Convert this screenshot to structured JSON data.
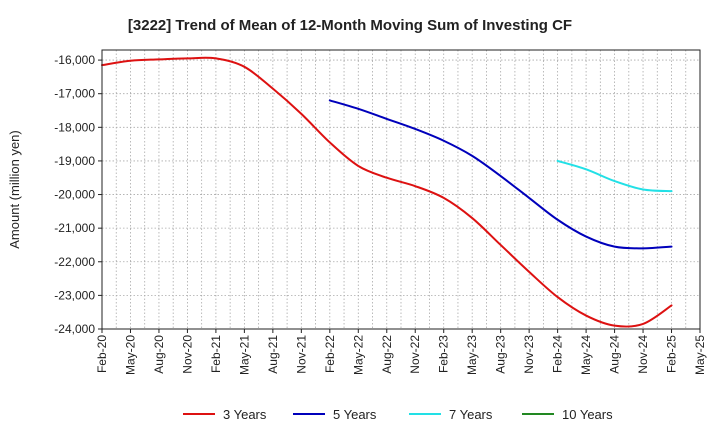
{
  "chart_data": {
    "type": "line",
    "title": "[3222]  Trend of Mean of 12-Month Moving Sum of Investing CF",
    "xlabel": "",
    "ylabel": "Amount (million yen)",
    "ylim": [
      -24000,
      -15700
    ],
    "yticks": [
      -16000,
      -17000,
      -18000,
      -19000,
      -20000,
      -21000,
      -22000,
      -23000,
      -24000
    ],
    "ytick_labels": [
      "-16,000",
      "-17,000",
      "-18,000",
      "-19,000",
      "-20,000",
      "-21,000",
      "-22,000",
      "-23,000",
      "-24,000"
    ],
    "categories": [
      "Feb-20",
      "May-20",
      "Aug-20",
      "Nov-20",
      "Feb-21",
      "May-21",
      "Aug-21",
      "Nov-21",
      "Feb-22",
      "May-22",
      "Aug-22",
      "Nov-22",
      "Feb-23",
      "May-23",
      "Aug-23",
      "Nov-23",
      "Feb-24",
      "May-24",
      "Aug-24",
      "Nov-24",
      "Feb-25",
      "May-25"
    ],
    "grid": true,
    "legend_position": "bottom",
    "series": [
      {
        "name": "3 Years",
        "color": "#dd1111",
        "values": [
          -16150,
          -16020,
          -15980,
          -15950,
          -15950,
          -16200,
          -16850,
          -17600,
          -18450,
          -19150,
          -19500,
          -19750,
          -20100,
          -20700,
          -21500,
          -22300,
          -23050,
          -23600,
          -23900,
          -23850,
          -23300,
          null
        ]
      },
      {
        "name": "5 Years",
        "color": "#0000bb",
        "values": [
          null,
          null,
          null,
          null,
          null,
          null,
          null,
          null,
          -17200,
          -17450,
          -17750,
          -18050,
          -18400,
          -18850,
          -19450,
          -20100,
          -20750,
          -21250,
          -21550,
          -21600,
          -21550,
          null
        ]
      },
      {
        "name": "7 Years",
        "color": "#22e0e6",
        "values": [
          null,
          null,
          null,
          null,
          null,
          null,
          null,
          null,
          null,
          null,
          null,
          null,
          null,
          null,
          null,
          null,
          -19000,
          -19250,
          -19600,
          -19850,
          -19900,
          null
        ]
      },
      {
        "name": "10 Years",
        "color": "#228822",
        "values": [
          null,
          null,
          null,
          null,
          null,
          null,
          null,
          null,
          null,
          null,
          null,
          null,
          null,
          null,
          null,
          null,
          null,
          null,
          null,
          null,
          null,
          null
        ]
      }
    ]
  }
}
